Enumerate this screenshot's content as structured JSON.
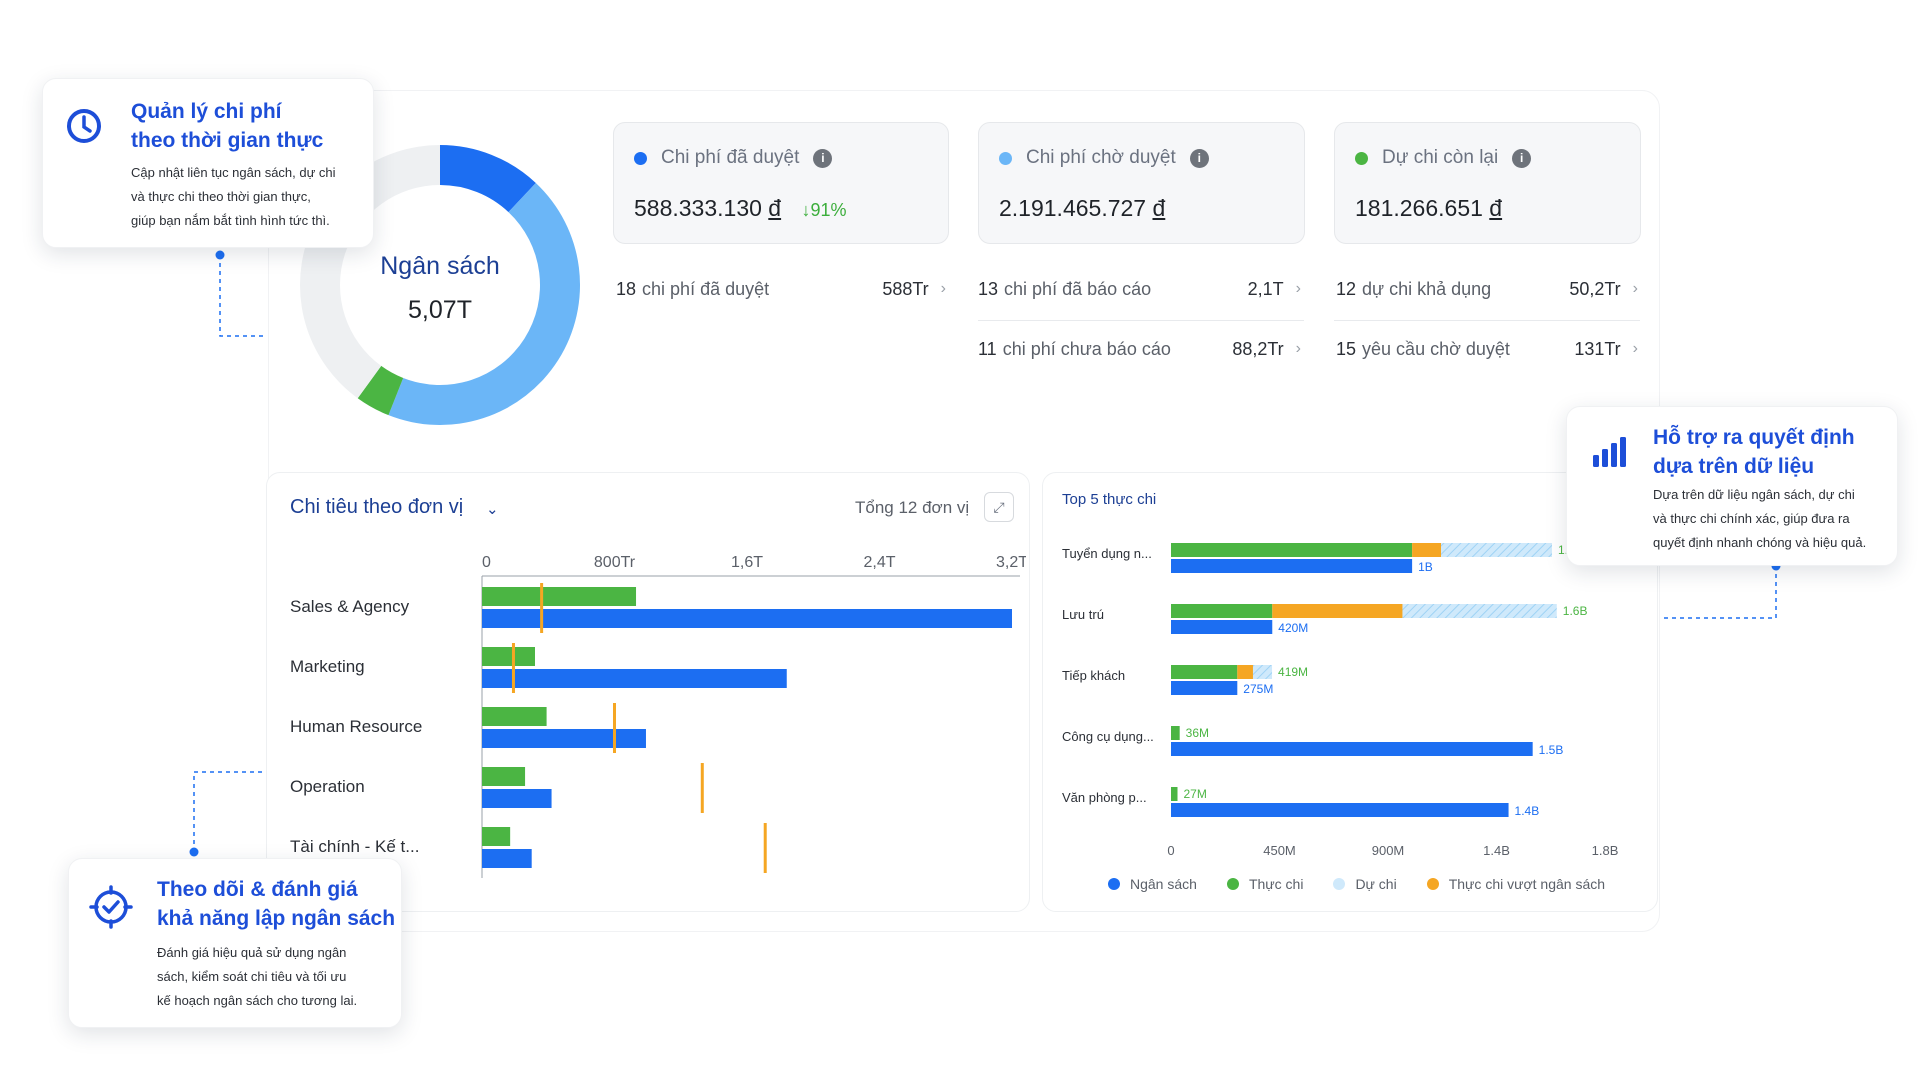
{
  "colors": {
    "primary_blue": "#1c6ef2",
    "light_blue": "#6bb6f7",
    "green": "#4bb543",
    "orange": "#f5a623",
    "title_navy": "#1c3f94"
  },
  "budget_donut": {
    "title": "Ngân sách",
    "value": "5,07T",
    "segments": [
      {
        "name": "segment-dark-blue",
        "value": 0.12,
        "color": "#1c6ef2"
      },
      {
        "name": "segment-light-blue",
        "value": 0.44,
        "color": "#6bb6f7"
      },
      {
        "name": "segment-green",
        "value": 0.04,
        "color": "#4bb543"
      },
      {
        "name": "segment-grey",
        "value": 0.4,
        "color": "#eef0f2"
      }
    ]
  },
  "stat_cards": [
    {
      "label": "Chi phí đã duyệt",
      "value": "588.333.130",
      "currency": "đ",
      "trend": "91%",
      "dot_color": "#1c6ef2"
    },
    {
      "label": "Chi phí chờ duyệt",
      "value": "2.191.465.727",
      "currency": "đ",
      "trend": "",
      "dot_color": "#6bb6f7"
    },
    {
      "label": "Dự chi còn lại",
      "value": "181.266.651",
      "currency": "đ",
      "trend": "",
      "dot_color": "#4bb543"
    }
  ],
  "sub_rows": {
    "approved": {
      "count": "18",
      "label": "chi phí đã duyệt",
      "amount": "588Tr"
    },
    "reported": {
      "count": "13",
      "label": "chi phí đã báo cáo",
      "amount": "2,1T"
    },
    "unreported": {
      "count": "11",
      "label": "chi phí chưa báo cáo",
      "amount": "88,2Tr"
    },
    "available": {
      "count": "12",
      "label": "dự chi khả dụng",
      "amount": "50,2Tr"
    },
    "pending_requests": {
      "count": "15",
      "label": "yêu cầu chờ duyệt",
      "amount": "131Tr"
    }
  },
  "unit_spending": {
    "title": "Chi tiêu theo đơn vị",
    "total": "Tổng 12 đơn vị"
  },
  "top5": {
    "title": "Top 5 thực chi"
  },
  "legend": [
    {
      "label": "Ngân sách",
      "color": "#1c6ef2"
    },
    {
      "label": "Thực chi",
      "color": "#4bb543"
    },
    {
      "label": "Dự chi",
      "color": "#cfe9fb"
    },
    {
      "label": "Thực chi vượt ngân sách",
      "color": "#f5a623"
    }
  ],
  "chart_data": [
    {
      "type": "bar",
      "orientation": "horizontal",
      "categories": [
        "Sales & Agency",
        "Marketing",
        "Human Resource",
        "Operation",
        "Tài chính - Kế t..."
      ],
      "x_tick_labels": [
        "0",
        "800Tr",
        "1,6T",
        "2,4T",
        "3,2T"
      ],
      "xlim": [
        0,
        3.2
      ],
      "series": [
        {
          "color": "#4bb543",
          "values": [
            0.93,
            0.32,
            0.39,
            0.26,
            0.17
          ]
        },
        {
          "color": "#1c6ef2",
          "values": [
            3.2,
            1.84,
            0.99,
            0.42,
            0.3
          ]
        }
      ],
      "markers": [
        0.36,
        0.19,
        0.8,
        1.33,
        1.71
      ]
    },
    {
      "type": "bar",
      "orientation": "horizontal",
      "categories": [
        "Tuyển dụng n...",
        "Lưu trú",
        "Tiếp khách",
        "Công cụ dụng...",
        "Văn phòng p..."
      ],
      "x_tick_labels": [
        "0",
        "450M",
        "900M",
        "1.4B",
        "1.8B"
      ],
      "xlim": [
        0,
        1.8
      ],
      "budget": [
        1.0,
        0.42,
        0.275,
        1.5,
        1.4
      ],
      "budget_labels": [
        "1B",
        "420M",
        "275M",
        "1.5B",
        "1.4B"
      ],
      "actual": [
        1.0,
        0.42,
        0.275,
        0.036,
        0.027
      ],
      "over_budget": [
        0.12,
        0.54,
        0.065,
        0,
        0
      ],
      "forecast": [
        0.46,
        0.64,
        0.079,
        0,
        0
      ],
      "total_labels": [
        "1.",
        "1.6B",
        "419M",
        "36M",
        "27M"
      ]
    }
  ],
  "callouts": {
    "realtime": {
      "title_line1": "Quản lý chi phí",
      "title_line2": "theo thời gian thực",
      "desc_line1": "Cập nhật liên tục ngân sách, dự chi",
      "desc_line2": "và thực chi theo thời gian thực,",
      "desc_line3": "giúp bạn nắm bắt tình hình tức thì."
    },
    "decision": {
      "title_line1": "Hỗ trợ ra quyết định",
      "title_line2": "dựa trên dữ liệu",
      "desc_line1": "Dựa trên dữ liệu ngân sách, dự chi",
      "desc_line2": "và thực chi chính xác, giúp đưa ra",
      "desc_line3": "quyết định nhanh chóng và hiệu quả."
    },
    "tracking": {
      "title_line1": "Theo dõi & đánh giá",
      "title_line2": "khả năng lập ngân sách",
      "desc_line1": "Đánh giá hiệu quả sử dụng ngân",
      "desc_line2": "sách, kiểm soát chi tiêu và tối ưu",
      "desc_line3": "kế hoạch ngân sách cho tương lai."
    }
  }
}
